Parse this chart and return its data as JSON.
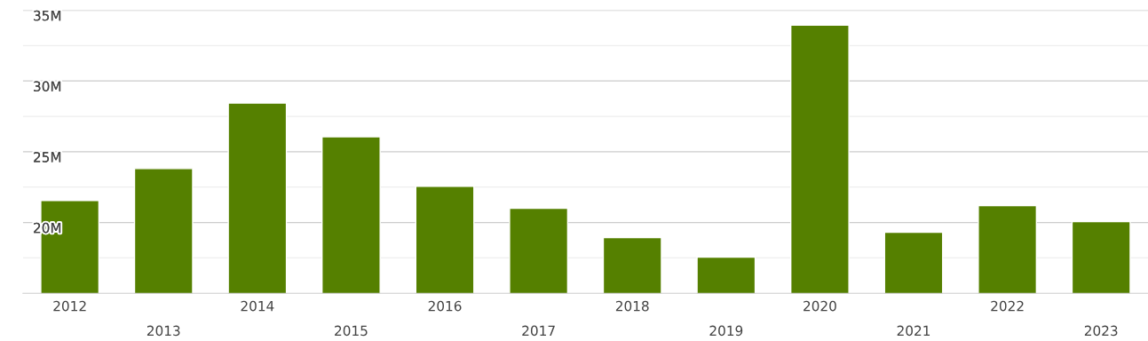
{
  "chart_data": {
    "type": "bar",
    "categories": [
      "2012",
      "2013",
      "2014",
      "2015",
      "2016",
      "2017",
      "2018",
      "2019",
      "2020",
      "2021",
      "2022",
      "2023"
    ],
    "values": [
      21.56,
      23.81,
      28.44,
      26.06,
      22.56,
      21.0,
      18.94,
      17.56,
      33.94,
      19.31,
      21.19,
      20.06
    ],
    "color": "#558000",
    "ylim": [
      15,
      35
    ],
    "yticks": [
      {
        "value": 17.5,
        "label": null
      },
      {
        "value": 20,
        "label": "20M"
      },
      {
        "value": 22.5,
        "label": null
      },
      {
        "value": 25,
        "label": "25M"
      },
      {
        "value": 27.5,
        "label": null
      },
      {
        "value": 30,
        "label": "30M"
      },
      {
        "value": 32.5,
        "label": null
      },
      {
        "value": 35,
        "label": "35M"
      }
    ],
    "grid": "y"
  }
}
